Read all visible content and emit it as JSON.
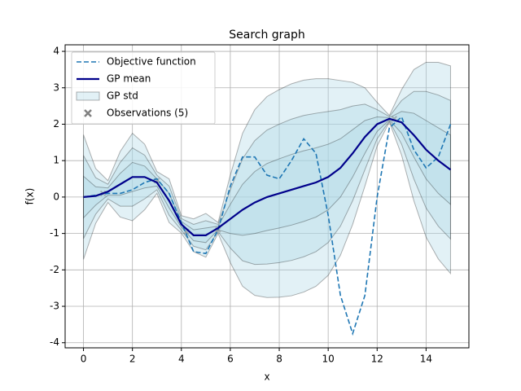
{
  "chart_data": {
    "type": "line",
    "title": "Search graph",
    "x_label": "x",
    "y_label": "f(x)",
    "x": [
      0,
      0.5,
      1,
      1.5,
      2,
      2.5,
      3,
      3.5,
      4,
      4.5,
      5,
      5.5,
      6,
      6.5,
      7,
      7.5,
      8,
      8.5,
      9,
      9.5,
      10,
      10.5,
      11,
      11.5,
      12,
      12.5,
      13,
      13.5,
      14,
      14.5,
      15
    ],
    "series": [
      {
        "name": "Objective function",
        "color": "#1f77b4",
        "style": "dashed",
        "values": [
          0,
          0.05,
          0.1,
          0.1,
          0.2,
          0.4,
          0.5,
          0.1,
          -0.7,
          -1.5,
          -1.55,
          -0.9,
          0.3,
          1.1,
          1.1,
          0.6,
          0.5,
          1.0,
          1.6,
          1.2,
          -0.5,
          -2.7,
          -3.75,
          -2.7,
          0.0,
          1.9,
          2.2,
          1.3,
          0.8,
          1.1,
          2.0
        ]
      },
      {
        "name": "GP mean",
        "color": "#00008b",
        "style": "solid",
        "values": [
          0,
          0.03,
          0.15,
          0.35,
          0.55,
          0.55,
          0.4,
          -0.1,
          -0.75,
          -1.05,
          -1.05,
          -0.85,
          -0.6,
          -0.35,
          -0.15,
          0,
          0.1,
          0.2,
          0.3,
          0.4,
          0.55,
          0.8,
          1.2,
          1.65,
          2.0,
          2.15,
          2.05,
          1.7,
          1.3,
          1.0,
          0.75
        ]
      }
    ],
    "band": {
      "name": "GP std",
      "color": "#add8e6",
      "values": [
        0.57,
        0.25,
        0.1,
        0.3,
        0.4,
        0.3,
        0.1,
        0.2,
        0.08,
        0.15,
        0.2,
        0.05,
        0.4,
        0.7,
        0.85,
        0.92,
        0.95,
        0.97,
        0.97,
        0.95,
        0.9,
        0.8,
        0.65,
        0.45,
        0.2,
        0.03,
        0.3,
        0.6,
        0.8,
        0.9,
        0.95
      ]
    },
    "observations": {
      "name": "Observations (5)",
      "color": "#808080",
      "x": [
        0.8,
        3.0,
        4.2,
        5.5,
        12.7
      ],
      "y": [
        0.1,
        0.45,
        -0.95,
        -0.9,
        2.15
      ]
    },
    "xlim": [
      -0.75,
      15.75
    ],
    "ylim": [
      -4.14,
      4.18
    ],
    "xticks": [
      0,
      2,
      4,
      6,
      8,
      10,
      12,
      14
    ],
    "yticks": [
      -4,
      -3,
      -2,
      -1,
      0,
      1,
      2,
      3,
      4
    ],
    "grid": true,
    "legend": "upper left"
  }
}
